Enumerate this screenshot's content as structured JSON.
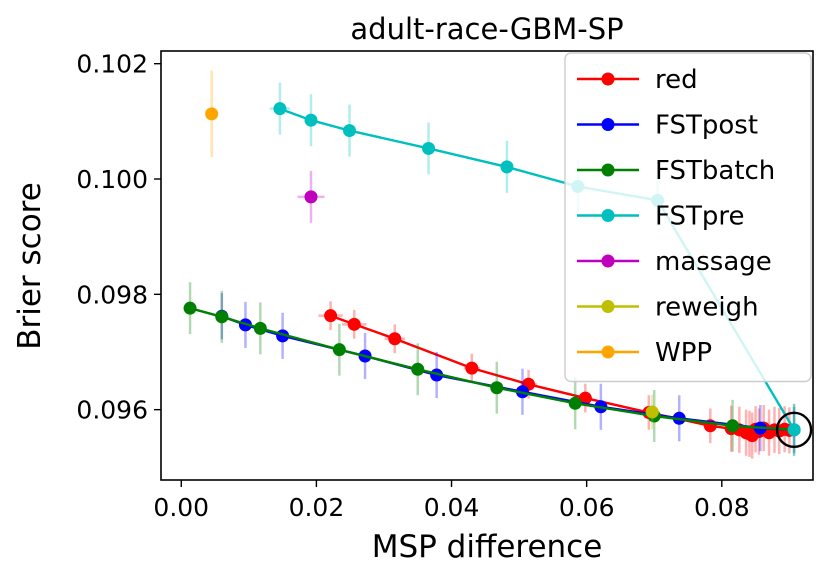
{
  "chart_data": {
    "type": "scatter",
    "title": "adult-race-GBM-SP",
    "xlabel": "MSP difference",
    "ylabel": "Brier score",
    "xlim": [
      -0.003,
      0.0935
    ],
    "ylim": [
      0.09478,
      0.10222
    ],
    "x_ticks": [
      0.0,
      0.02,
      0.04,
      0.06,
      0.08
    ],
    "x_tick_labels": [
      "0.00",
      "0.02",
      "0.04",
      "0.06",
      "0.08"
    ],
    "y_ticks": [
      0.096,
      0.098,
      0.1,
      0.102
    ],
    "y_tick_labels": [
      "0.096",
      "0.098",
      "0.100",
      "0.102"
    ],
    "legend_position": "upper-right",
    "highlight": {
      "x": 0.0907,
      "y": 0.09565,
      "label": "circled point"
    },
    "series": [
      {
        "name": "red",
        "color": "#ff0000",
        "line": true,
        "x": [
          0.0221,
          0.0256,
          0.0316,
          0.043,
          0.0514,
          0.0598,
          0.0692,
          0.0783,
          0.0814,
          0.0826,
          0.0836,
          0.0841,
          0.0845,
          0.085,
          0.0855,
          0.0862,
          0.087,
          0.0878,
          0.0885,
          0.0893,
          0.09
        ],
        "y": [
          0.09763,
          0.09748,
          0.09723,
          0.09672,
          0.09644,
          0.0962,
          0.09595,
          0.09572,
          0.09567,
          0.09565,
          0.0956,
          0.09558,
          0.09555,
          0.09566,
          0.09562,
          0.09568,
          0.0956,
          0.09565,
          0.09563,
          0.09566,
          0.09564
        ],
        "yerr": [
          0.00025,
          0.00025,
          0.00025,
          0.00025,
          0.00025,
          0.00025,
          0.0003,
          0.0003,
          0.0004,
          0.0004,
          0.0004,
          0.0004,
          0.0004,
          0.0004,
          0.0004,
          0.0004,
          0.0004,
          0.0004,
          0.0004,
          0.0004,
          0.0004
        ],
        "xerr": [
          0.0018,
          0.0018,
          0.0015,
          0.0012,
          0.0012,
          0.001,
          0.001,
          0.001,
          0.001,
          0.001,
          0.001,
          0.001,
          0.001,
          0.001,
          0.001,
          0.001,
          0.001,
          0.001,
          0.001,
          0.001,
          0.001
        ]
      },
      {
        "name": "FSTpost",
        "color": "#0000ff",
        "line": true,
        "x": [
          0.006,
          0.0095,
          0.015,
          0.0272,
          0.0378,
          0.0505,
          0.0621,
          0.0737,
          0.0857,
          0.0907
        ],
        "y": [
          0.09762,
          0.09747,
          0.09728,
          0.09693,
          0.0966,
          0.09631,
          0.09605,
          0.09585,
          0.09568,
          0.09565
        ],
        "yerr": [
          0.0004,
          0.0004,
          0.0004,
          0.0004,
          0.0004,
          0.0004,
          0.0004,
          0.0004,
          0.0004,
          0.0004
        ],
        "xerr": [
          0,
          0,
          0,
          0,
          0,
          0,
          0,
          0,
          0,
          0
        ]
      },
      {
        "name": "FSTbatch",
        "color": "#008000",
        "line": true,
        "x": [
          0.0013,
          0.006,
          0.0117,
          0.0234,
          0.035,
          0.0467,
          0.0583,
          0.07,
          0.0816,
          0.0907
        ],
        "y": [
          0.09776,
          0.09761,
          0.09741,
          0.09704,
          0.0967,
          0.09638,
          0.09611,
          0.09589,
          0.09572,
          0.09565
        ],
        "yerr": [
          0.00045,
          0.00045,
          0.00045,
          0.00045,
          0.00045,
          0.00045,
          0.00045,
          0.00045,
          0.00045,
          0.00045
        ],
        "xerr": [
          0,
          0,
          0,
          0,
          0,
          0,
          0,
          0,
          0,
          0
        ]
      },
      {
        "name": "FSTpre",
        "color": "#00bfbf",
        "line": true,
        "x": [
          0.0146,
          0.0192,
          0.0249,
          0.0366,
          0.0482,
          0.0587,
          0.0705,
          0.0907
        ],
        "y": [
          0.10122,
          0.10102,
          0.10084,
          0.10053,
          0.10021,
          0.09987,
          0.09963,
          0.09565
        ],
        "yerr": [
          0.00045,
          0.00045,
          0.00045,
          0.00045,
          0.00045,
          0.00045,
          0.00045,
          0.00045
        ],
        "xerr": [
          0.0015,
          0,
          0,
          0,
          0,
          0,
          0,
          0
        ]
      },
      {
        "name": "massage",
        "color": "#bf00bf",
        "line": false,
        "x": [
          0.0192
        ],
        "y": [
          0.09969
        ],
        "yerr": [
          0.00045
        ],
        "xerr": [
          0.002
        ]
      },
      {
        "name": "reweigh",
        "color": "#bfbf00",
        "line": false,
        "x": [
          0.0697
        ],
        "y": [
          0.09596
        ],
        "yerr": [
          0.0003
        ],
        "xerr": [
          0.001
        ]
      },
      {
        "name": "WPP",
        "color": "#ffa500",
        "line": false,
        "x": [
          0.0045
        ],
        "y": [
          0.10113
        ],
        "yerr": [
          0.00075
        ],
        "xerr": [
          0
        ]
      }
    ]
  }
}
